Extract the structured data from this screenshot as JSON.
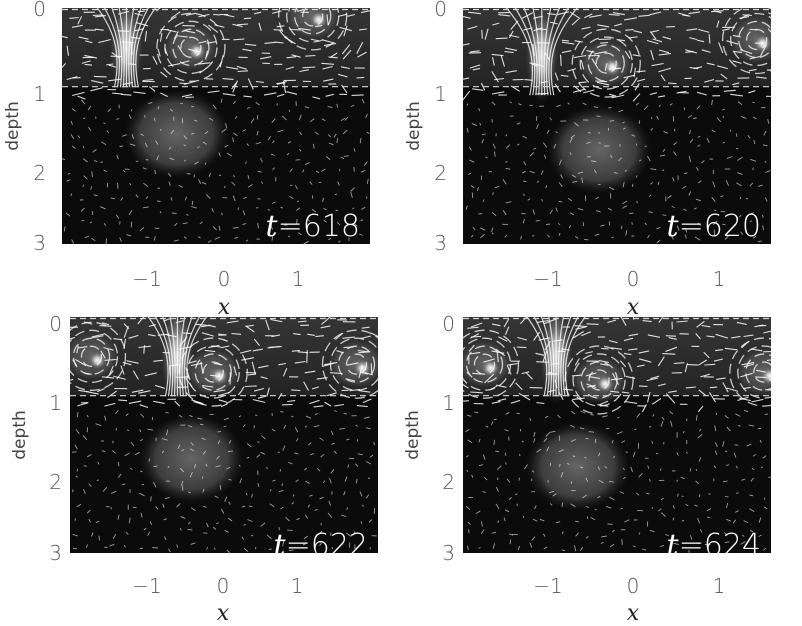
{
  "chart_data": [
    {
      "type": "heatmap",
      "annotation": {
        "var": "t",
        "eq": "=",
        "value": "618"
      },
      "xlabel": "x",
      "ylabel": "depth",
      "xticks": [
        "−1",
        "0",
        "1"
      ],
      "yticks": [
        "0",
        "1",
        "2",
        "3"
      ],
      "xlim": [
        -2.1,
        2.2
      ],
      "ylim": [
        3,
        0
      ],
      "dashed_lines_depth": [
        0,
        1
      ],
      "features": [
        {
          "kind": "plume",
          "x": -1.2,
          "depth": 0.5
        },
        {
          "kind": "vortex",
          "x": -0.3,
          "depth": 0.5
        },
        {
          "kind": "blob",
          "x": -0.5,
          "depth": 1.6
        },
        {
          "kind": "vortex",
          "x": 1.4,
          "depth": 0.1
        }
      ]
    },
    {
      "type": "heatmap",
      "annotation": {
        "var": "t",
        "eq": "=",
        "value": "620"
      },
      "xlabel": "x",
      "ylabel": "depth",
      "xticks": [
        "−1",
        "0",
        "1"
      ],
      "yticks": [
        "0",
        "1",
        "2",
        "3"
      ],
      "xlim": [
        -2.1,
        2.2
      ],
      "ylim": [
        3,
        0
      ],
      "dashed_lines_depth": [
        0,
        1
      ],
      "features": [
        {
          "kind": "plume",
          "x": -1.0,
          "depth": 0.6
        },
        {
          "kind": "vortex",
          "x": -0.1,
          "depth": 0.7
        },
        {
          "kind": "blob",
          "x": -0.2,
          "depth": 1.8
        },
        {
          "kind": "vortex",
          "x": 2.0,
          "depth": 0.4
        }
      ]
    },
    {
      "type": "heatmap",
      "annotation": {
        "var": "t",
        "eq": "=",
        "value": "622"
      },
      "xlabel": "x",
      "ylabel": "depth",
      "xticks": [
        "−1",
        "0",
        "1"
      ],
      "yticks": [
        "0",
        "1",
        "2",
        "3"
      ],
      "xlim": [
        -2.1,
        2.2
      ],
      "ylim": [
        3,
        0
      ],
      "dashed_lines_depth": [
        0,
        1
      ],
      "features": [
        {
          "kind": "vortex",
          "x": -1.8,
          "depth": 0.5
        },
        {
          "kind": "plume",
          "x": -0.6,
          "depth": 0.5
        },
        {
          "kind": "vortex",
          "x": -0.1,
          "depth": 0.7
        },
        {
          "kind": "blob",
          "x": -0.4,
          "depth": 1.8
        },
        {
          "kind": "vortex",
          "x": 1.9,
          "depth": 0.6
        }
      ]
    },
    {
      "type": "heatmap",
      "annotation": {
        "var": "t",
        "eq": "=",
        "value": "624"
      },
      "xlabel": "x",
      "ylabel": "depth",
      "xticks": [
        "−1",
        "0",
        "1"
      ],
      "yticks": [
        "0",
        "1",
        "2",
        "3"
      ],
      "xlim": [
        -2.1,
        2.2
      ],
      "ylim": [
        3,
        0
      ],
      "dashed_lines_depth": [
        0,
        1
      ],
      "features": [
        {
          "kind": "vortex",
          "x": -1.8,
          "depth": 0.6
        },
        {
          "kind": "plume",
          "x": -0.8,
          "depth": 0.5
        },
        {
          "kind": "vortex",
          "x": -0.2,
          "depth": 0.8
        },
        {
          "kind": "blob",
          "x": -0.5,
          "depth": 1.9
        },
        {
          "kind": "vortex",
          "x": 2.1,
          "depth": 0.7
        }
      ]
    }
  ]
}
